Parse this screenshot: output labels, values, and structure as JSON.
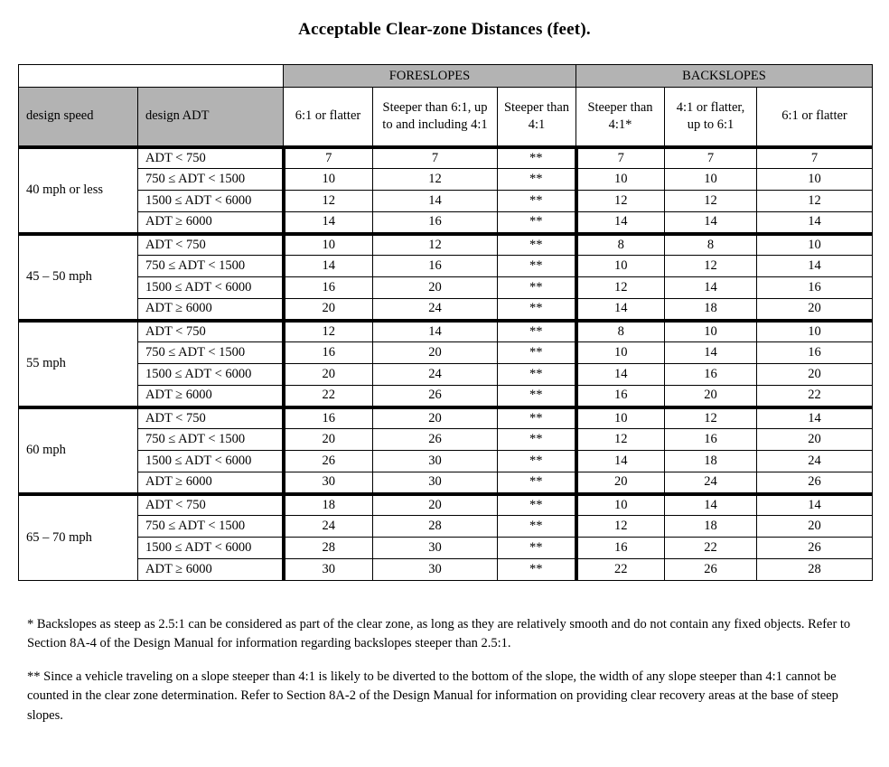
{
  "title": "Acceptable Clear-zone Distances (feet).",
  "colors": {
    "header_bg": "#b3b3b3",
    "border": "#000000"
  },
  "table": {
    "sections": {
      "foreslopes": "FORESLOPES",
      "backslopes": "BACKSLOPES"
    },
    "col_headers": {
      "design_speed": "design speed",
      "design_adt": "design ADT"
    },
    "foreslope_cols": [
      "6:1 or flatter",
      "Steeper than 6:1, up to and including 4:1",
      "Steeper than 4:1"
    ],
    "backslope_cols": [
      "Steeper than 4:1*",
      "4:1 or flatter, up to 6:1",
      "6:1 or flatter"
    ],
    "groups": [
      {
        "speed": "40 mph or less",
        "rows": [
          {
            "adt": "ADT < 750",
            "values": [
              "7",
              "7",
              "**",
              "7",
              "7",
              "7"
            ]
          },
          {
            "adt": "750 ≤ ADT < 1500",
            "values": [
              "10",
              "12",
              "**",
              "10",
              "10",
              "10"
            ]
          },
          {
            "adt": "1500 ≤ ADT < 6000",
            "values": [
              "12",
              "14",
              "**",
              "12",
              "12",
              "12"
            ]
          },
          {
            "adt": "ADT ≥ 6000",
            "values": [
              "14",
              "16",
              "**",
              "14",
              "14",
              "14"
            ]
          }
        ]
      },
      {
        "speed": "45 – 50 mph",
        "rows": [
          {
            "adt": "ADT < 750",
            "values": [
              "10",
              "12",
              "**",
              "8",
              "8",
              "10"
            ]
          },
          {
            "adt": "750 ≤ ADT < 1500",
            "values": [
              "14",
              "16",
              "**",
              "10",
              "12",
              "14"
            ]
          },
          {
            "adt": "1500 ≤ ADT < 6000",
            "values": [
              "16",
              "20",
              "**",
              "12",
              "14",
              "16"
            ]
          },
          {
            "adt": "ADT ≥ 6000",
            "values": [
              "20",
              "24",
              "**",
              "14",
              "18",
              "20"
            ]
          }
        ]
      },
      {
        "speed": "55 mph",
        "rows": [
          {
            "adt": "ADT < 750",
            "values": [
              "12",
              "14",
              "**",
              "8",
              "10",
              "10"
            ]
          },
          {
            "adt": "750 ≤ ADT < 1500",
            "values": [
              "16",
              "20",
              "**",
              "10",
              "14",
              "16"
            ]
          },
          {
            "adt": "1500 ≤ ADT < 6000",
            "values": [
              "20",
              "24",
              "**",
              "14",
              "16",
              "20"
            ]
          },
          {
            "adt": "ADT ≥ 6000",
            "values": [
              "22",
              "26",
              "**",
              "16",
              "20",
              "22"
            ]
          }
        ]
      },
      {
        "speed": "60 mph",
        "rows": [
          {
            "adt": "ADT < 750",
            "values": [
              "16",
              "20",
              "**",
              "10",
              "12",
              "14"
            ]
          },
          {
            "adt": "750 ≤ ADT < 1500",
            "values": [
              "20",
              "26",
              "**",
              "12",
              "16",
              "20"
            ]
          },
          {
            "adt": "1500 ≤ ADT < 6000",
            "values": [
              "26",
              "30",
              "**",
              "14",
              "18",
              "24"
            ]
          },
          {
            "adt": "ADT ≥ 6000",
            "values": [
              "30",
              "30",
              "**",
              "20",
              "24",
              "26"
            ]
          }
        ]
      },
      {
        "speed": "65 – 70 mph",
        "rows": [
          {
            "adt": "ADT < 750",
            "values": [
              "18",
              "20",
              "**",
              "10",
              "14",
              "14"
            ]
          },
          {
            "adt": "750 ≤ ADT < 1500",
            "values": [
              "24",
              "28",
              "**",
              "12",
              "18",
              "20"
            ]
          },
          {
            "adt": "1500 ≤ ADT < 6000",
            "values": [
              "28",
              "30",
              "**",
              "16",
              "22",
              "26"
            ]
          },
          {
            "adt": "ADT ≥ 6000",
            "values": [
              "30",
              "30",
              "**",
              "22",
              "26",
              "28"
            ]
          }
        ]
      }
    ]
  },
  "footnotes": [
    "* Backslopes as steep as 2.5:1 can be considered as part of the clear zone, as long as they are relatively smooth and do not contain any fixed objects.  Refer to Section 8A-4 of the Design Manual for information regarding backslopes steeper than 2.5:1.",
    "** Since a vehicle traveling on a slope steeper than 4:1 is likely to be diverted to the bottom of the slope, the width of any slope steeper than 4:1 cannot be counted in the clear zone determination. Refer to Section 8A-2 of the Design Manual for information on providing clear recovery areas at the base of steep slopes."
  ]
}
